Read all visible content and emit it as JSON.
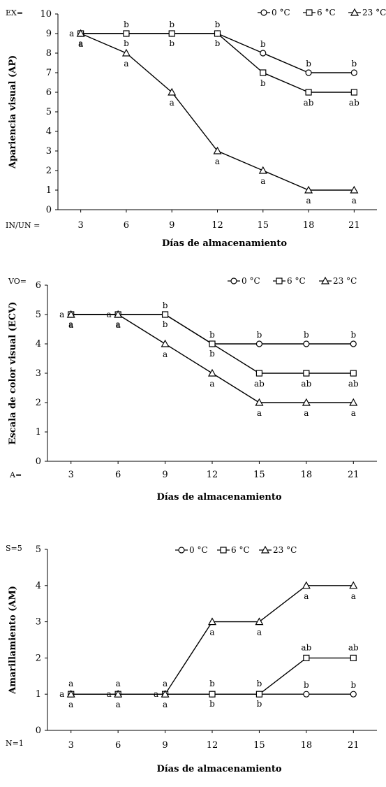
{
  "figure": {
    "legend_labels": [
      "0 °C",
      "6 °C",
      "23 °C"
    ],
    "line_color": "#000000"
  },
  "chart_data": [
    {
      "type": "line",
      "corner_labels": [
        "EX=",
        "IN/UN ="
      ],
      "xlabel": "Días de almacenamiento",
      "ylabel": "Apariencia visual (AP)",
      "x": [
        3,
        6,
        9,
        12,
        15,
        18,
        21
      ],
      "ylim": [
        0,
        10
      ],
      "yticks": [
        0,
        1,
        2,
        3,
        4,
        5,
        6,
        7,
        8,
        9,
        10
      ],
      "legend_position": "top-right",
      "grid": false,
      "series": [
        {
          "name": "0 °C",
          "marker": "circle",
          "values": [
            9,
            9,
            9,
            9,
            8,
            7,
            7
          ],
          "letters": [
            "a",
            "b",
            "b",
            "b",
            "b",
            "b",
            "b"
          ]
        },
        {
          "name": "6 °C",
          "marker": "square",
          "values": [
            9,
            9,
            9,
            9,
            7,
            6,
            6
          ],
          "letters": [
            "a",
            "b",
            "b",
            "b",
            "b",
            "ab",
            "ab"
          ]
        },
        {
          "name": "23 °C",
          "marker": "triangle",
          "values": [
            9,
            8,
            6,
            3,
            2,
            1,
            1
          ],
          "letters": [
            "a",
            "a",
            "a",
            "a",
            "a",
            "a",
            "a"
          ]
        }
      ]
    },
    {
      "type": "line",
      "corner_labels": [
        "VO=",
        "A="
      ],
      "xlabel": "Días de almacenamiento",
      "ylabel": "Escala de color visual (ECV)",
      "x": [
        3,
        6,
        9,
        12,
        15,
        18,
        21
      ],
      "ylim": [
        0,
        6
      ],
      "yticks": [
        0,
        1,
        2,
        3,
        4,
        5,
        6
      ],
      "legend_position": "top-right",
      "grid": false,
      "series": [
        {
          "name": "0 °C",
          "marker": "circle",
          "values": [
            5,
            5,
            5,
            4,
            4,
            4,
            4
          ],
          "letters": [
            "a",
            "a",
            "b",
            "b",
            "b",
            "b",
            "b"
          ]
        },
        {
          "name": "6 °C",
          "marker": "square",
          "values": [
            5,
            5,
            5,
            4,
            3,
            3,
            3
          ],
          "letters": [
            "a",
            "a",
            "b",
            "b",
            "ab",
            "ab",
            "ab"
          ]
        },
        {
          "name": "23 °C",
          "marker": "triangle",
          "values": [
            5,
            5,
            4,
            3,
            2,
            2,
            2
          ],
          "letters": [
            "a",
            "a",
            "a",
            "a",
            "a",
            "a",
            "a"
          ]
        }
      ]
    },
    {
      "type": "line",
      "corner_labels": [
        "S=5",
        "N=1"
      ],
      "xlabel": "Días de almacenamiento",
      "ylabel": "Amarillamiento (AM)",
      "x": [
        3,
        6,
        9,
        12,
        15,
        18,
        21
      ],
      "ylim": [
        0,
        5
      ],
      "yticks": [
        0,
        1,
        2,
        3,
        4,
        5
      ],
      "legend_position": "top-center",
      "grid": false,
      "series": [
        {
          "name": "0 °C",
          "marker": "circle",
          "values": [
            1,
            1,
            1,
            1,
            1,
            1,
            1
          ],
          "letters": [
            "a",
            "a",
            "a",
            "b",
            "b",
            "b",
            "b"
          ]
        },
        {
          "name": "6 °C",
          "marker": "square",
          "values": [
            1,
            1,
            1,
            1,
            1,
            2,
            2
          ],
          "letters": [
            "a",
            "a",
            "a",
            "b",
            "b",
            "ab",
            "ab"
          ]
        },
        {
          "name": "23 °C",
          "marker": "triangle",
          "values": [
            1,
            1,
            1,
            3,
            3,
            4,
            4
          ],
          "letters": [
            "a",
            "a",
            "a",
            "a",
            "a",
            "a",
            "a"
          ]
        }
      ]
    }
  ]
}
